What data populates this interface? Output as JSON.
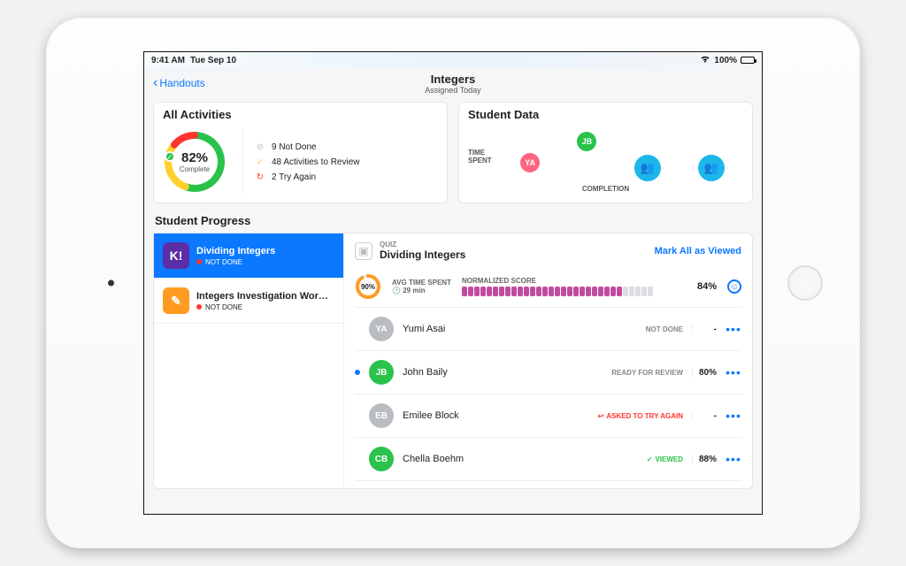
{
  "statusbar": {
    "time": "9:41 AM",
    "date": "Tue Sep 10",
    "battery": "100%",
    "battery_fill": 100
  },
  "nav": {
    "back_label": "Handouts",
    "title": "Integers",
    "subtitle": "Assigned Today"
  },
  "colors": {
    "accent": "#0a78ff",
    "green": "#2ac24a",
    "cyan": "#1ab7ea",
    "orange": "#ff9b20",
    "red": "#ff3530",
    "yellow": "#ffd02a",
    "gray": "#b9bcc1",
    "pink": "#ff6480",
    "purple": "#5b2ea6",
    "magenta": "#c14b9f"
  },
  "all_activities": {
    "heading": "All Activities",
    "percent": "82%",
    "percent_label": "Complete",
    "donut": {
      "green_deg": 200,
      "yellow_deg": 310,
      "red_deg": 360
    },
    "stats": [
      {
        "icon": "link",
        "color": "#b9bcc1",
        "text": "9 Not Done"
      },
      {
        "icon": "check",
        "color": "#ffd02a",
        "text": "48 Activities to Review"
      },
      {
        "icon": "retry",
        "color": "#ff3530",
        "text": "2 Try Again"
      }
    ]
  },
  "student_data": {
    "heading": "Student Data",
    "y_label": "TIME SPENT",
    "x_label": "COMPLETION",
    "bubbles": [
      {
        "label": "YA",
        "color": "#ff6480",
        "size": 22,
        "y": 10
      },
      {
        "label": "JB",
        "color": "#2ac24a",
        "size": 22,
        "y": 34
      },
      {
        "label": "",
        "icon": "group",
        "color": "#1ab7ea",
        "size": 30,
        "y": 0
      },
      {
        "label": "",
        "icon": "group",
        "color": "#1ab7ea",
        "size": 30,
        "y": 0
      }
    ]
  },
  "student_progress": {
    "heading": "Student Progress",
    "activities": [
      {
        "name": "Dividing Integers",
        "status": "NOT DONE",
        "status_color": "#ff3530",
        "icon_text": "K!",
        "icon_bg": "#5b2ea6",
        "selected": true
      },
      {
        "name": "Integers Investigation Wor…",
        "status": "NOT DONE",
        "status_color": "#ff3530",
        "icon_text": "✎",
        "icon_bg": "#ff9b20",
        "selected": false
      }
    ],
    "detail": {
      "type_label": "QUIZ",
      "title": "Dividing Integers",
      "mark_all": "Mark All as Viewed",
      "summary": {
        "donut_pct": "90%",
        "donut_color": "#ff9b20",
        "avg_label": "AVG TIME SPENT",
        "avg_value": "29 min",
        "norm_label": "NORMALIZED SCORE",
        "norm_fill": 26,
        "norm_total": 31,
        "norm_color": "#c14b9f",
        "norm_empty": "#dcdde1",
        "score": "84%"
      },
      "students": [
        {
          "initials": "YA",
          "color": "#b9bcc1",
          "name": "Yumi Asai",
          "status": "NOT DONE",
          "status_color": "#888",
          "score": "-",
          "unread": false
        },
        {
          "initials": "JB",
          "color": "#2ac24a",
          "name": "John Baily",
          "status": "READY FOR REVIEW",
          "status_color": "#888",
          "score": "80%",
          "unread": true
        },
        {
          "initials": "EB",
          "color": "#b9bcc1",
          "name": "Emilee Block",
          "status": "ASKED TO TRY AGAIN",
          "status_color": "#ff3530",
          "status_icon": "↩",
          "score": "-",
          "unread": false
        },
        {
          "initials": "CB",
          "color": "#2ac24a",
          "name": "Chella Boehm",
          "status": "VIEWED",
          "status_color": "#2ac24a",
          "status_icon": "✓",
          "score": "88%",
          "unread": false
        }
      ]
    }
  }
}
